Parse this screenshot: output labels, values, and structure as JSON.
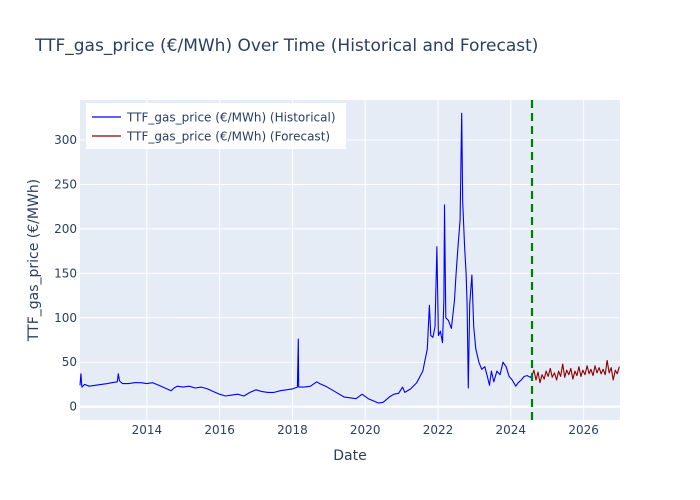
{
  "chart_data": {
    "type": "line",
    "title": "TTF_gas_price (€/MWh) Over Time (Historical and Forecast)",
    "xlabel": "Date",
    "ylabel": "TTF_gas_price (€/MWh)",
    "xlim": [
      "2012-03-01",
      "2027-01-01"
    ],
    "ylim": [
      -15,
      345
    ],
    "x_ticks": [
      "2014",
      "2016",
      "2018",
      "2020",
      "2022",
      "2024",
      "2026"
    ],
    "y_ticks": [
      0,
      50,
      100,
      150,
      200,
      250,
      300
    ],
    "grid": true,
    "legend_position": "top-left",
    "forecast_start_marker": "2024-08-01",
    "series": [
      {
        "name": "TTF_gas_price (€/MWh) (Historical)",
        "color": "#0000ff",
        "points": [
          [
            "2012-03-01",
            24
          ],
          [
            "2012-03-10",
            37
          ],
          [
            "2012-03-20",
            22
          ],
          [
            "2012-04-15",
            25
          ],
          [
            "2012-06-01",
            23
          ],
          [
            "2012-08-01",
            24
          ],
          [
            "2012-10-01",
            25
          ],
          [
            "2012-12-01",
            26
          ],
          [
            "2013-01-15",
            27
          ],
          [
            "2013-03-10",
            28
          ],
          [
            "2013-03-20",
            37
          ],
          [
            "2013-04-01",
            29
          ],
          [
            "2013-05-01",
            26
          ],
          [
            "2013-07-01",
            26
          ],
          [
            "2013-09-01",
            27
          ],
          [
            "2013-11-01",
            27
          ],
          [
            "2014-01-01",
            26
          ],
          [
            "2014-03-01",
            27
          ],
          [
            "2014-05-01",
            24
          ],
          [
            "2014-07-01",
            21
          ],
          [
            "2014-09-01",
            18
          ],
          [
            "2014-10-01",
            21
          ],
          [
            "2014-11-01",
            23
          ],
          [
            "2015-01-01",
            22
          ],
          [
            "2015-03-01",
            23
          ],
          [
            "2015-05-01",
            21
          ],
          [
            "2015-07-01",
            22
          ],
          [
            "2015-09-01",
            20
          ],
          [
            "2015-11-01",
            17
          ],
          [
            "2016-01-01",
            14
          ],
          [
            "2016-03-01",
            12
          ],
          [
            "2016-05-01",
            13
          ],
          [
            "2016-07-01",
            14
          ],
          [
            "2016-09-01",
            12
          ],
          [
            "2016-11-01",
            16
          ],
          [
            "2017-01-01",
            19
          ],
          [
            "2017-03-01",
            17
          ],
          [
            "2017-05-01",
            16
          ],
          [
            "2017-07-01",
            16
          ],
          [
            "2017-09-01",
            18
          ],
          [
            "2017-11-01",
            19
          ],
          [
            "2018-01-01",
            20
          ],
          [
            "2018-02-20",
            22
          ],
          [
            "2018-03-01",
            76
          ],
          [
            "2018-03-05",
            22
          ],
          [
            "2018-05-01",
            22
          ],
          [
            "2018-07-01",
            23
          ],
          [
            "2018-09-01",
            28
          ],
          [
            "2018-10-01",
            26
          ],
          [
            "2018-12-01",
            23
          ],
          [
            "2019-02-01",
            19
          ],
          [
            "2019-04-01",
            15
          ],
          [
            "2019-06-01",
            11
          ],
          [
            "2019-08-01",
            10
          ],
          [
            "2019-10-01",
            9
          ],
          [
            "2019-12-01",
            14
          ],
          [
            "2020-02-01",
            9
          ],
          [
            "2020-04-01",
            6
          ],
          [
            "2020-05-15",
            4
          ],
          [
            "2020-07-01",
            5
          ],
          [
            "2020-09-01",
            11
          ],
          [
            "2020-10-15",
            14
          ],
          [
            "2020-12-01",
            15
          ],
          [
            "2021-01-10",
            22
          ],
          [
            "2021-02-01",
            16
          ],
          [
            "2021-04-01",
            20
          ],
          [
            "2021-06-01",
            27
          ],
          [
            "2021-08-01",
            40
          ],
          [
            "2021-09-15",
            65
          ],
          [
            "2021-10-06",
            114
          ],
          [
            "2021-10-20",
            80
          ],
          [
            "2021-11-10",
            78
          ],
          [
            "2021-12-01",
            90
          ],
          [
            "2021-12-21",
            180
          ],
          [
            "2022-01-05",
            80
          ],
          [
            "2022-01-25",
            85
          ],
          [
            "2022-02-15",
            72
          ],
          [
            "2022-03-01",
            120
          ],
          [
            "2022-03-07",
            227
          ],
          [
            "2022-03-20",
            100
          ],
          [
            "2022-04-15",
            97
          ],
          [
            "2022-05-15",
            88
          ],
          [
            "2022-06-15",
            120
          ],
          [
            "2022-07-01",
            150
          ],
          [
            "2022-07-20",
            180
          ],
          [
            "2022-08-10",
            210
          ],
          [
            "2022-08-26",
            330
          ],
          [
            "2022-09-05",
            230
          ],
          [
            "2022-09-25",
            180
          ],
          [
            "2022-10-10",
            150
          ],
          [
            "2022-10-20",
            115
          ],
          [
            "2022-11-01",
            21
          ],
          [
            "2022-11-15",
            115
          ],
          [
            "2022-12-07",
            148
          ],
          [
            "2022-12-25",
            90
          ],
          [
            "2023-01-15",
            65
          ],
          [
            "2023-02-15",
            50
          ],
          [
            "2023-03-15",
            42
          ],
          [
            "2023-04-15",
            45
          ],
          [
            "2023-05-15",
            32
          ],
          [
            "2023-06-01",
            24
          ],
          [
            "2023-06-20",
            40
          ],
          [
            "2023-07-15",
            28
          ],
          [
            "2023-08-15",
            40
          ],
          [
            "2023-09-15",
            36
          ],
          [
            "2023-10-15",
            50
          ],
          [
            "2023-11-15",
            45
          ],
          [
            "2023-12-15",
            34
          ],
          [
            "2024-01-15",
            30
          ],
          [
            "2024-02-20",
            23
          ],
          [
            "2024-03-15",
            27
          ],
          [
            "2024-04-15",
            30
          ],
          [
            "2024-05-15",
            34
          ],
          [
            "2024-06-15",
            35
          ],
          [
            "2024-07-15",
            33
          ],
          [
            "2024-08-01",
            35
          ]
        ]
      },
      {
        "name": "TTF_gas_price (€/MWh) (Forecast)",
        "color": "#8b0000",
        "points": [
          [
            "2024-08-01",
            35
          ],
          [
            "2024-08-20",
            41
          ],
          [
            "2024-09-10",
            30
          ],
          [
            "2024-09-30",
            39
          ],
          [
            "2024-10-20",
            27
          ],
          [
            "2024-11-10",
            36
          ],
          [
            "2024-12-01",
            31
          ],
          [
            "2024-12-20",
            40
          ],
          [
            "2025-01-10",
            34
          ],
          [
            "2025-02-01",
            43
          ],
          [
            "2025-02-20",
            33
          ],
          [
            "2025-03-15",
            38
          ],
          [
            "2025-04-05",
            30
          ],
          [
            "2025-04-25",
            40
          ],
          [
            "2025-05-15",
            34
          ],
          [
            "2025-06-05",
            48
          ],
          [
            "2025-06-25",
            33
          ],
          [
            "2025-07-15",
            41
          ],
          [
            "2025-08-05",
            36
          ],
          [
            "2025-08-25",
            43
          ],
          [
            "2025-09-15",
            31
          ],
          [
            "2025-10-05",
            40
          ],
          [
            "2025-10-25",
            35
          ],
          [
            "2025-11-15",
            45
          ],
          [
            "2025-12-05",
            34
          ],
          [
            "2025-12-25",
            41
          ],
          [
            "2026-01-15",
            36
          ],
          [
            "2026-02-05",
            46
          ],
          [
            "2026-02-25",
            37
          ],
          [
            "2026-03-15",
            42
          ],
          [
            "2026-04-05",
            35
          ],
          [
            "2026-04-25",
            46
          ],
          [
            "2026-05-15",
            38
          ],
          [
            "2026-06-05",
            44
          ],
          [
            "2026-06-25",
            37
          ],
          [
            "2026-07-15",
            42
          ],
          [
            "2026-08-05",
            36
          ],
          [
            "2026-08-25",
            52
          ],
          [
            "2026-09-15",
            38
          ],
          [
            "2026-10-05",
            44
          ],
          [
            "2026-10-25",
            30
          ],
          [
            "2026-11-15",
            41
          ],
          [
            "2026-12-05",
            37
          ],
          [
            "2026-12-25",
            45
          ]
        ]
      }
    ]
  },
  "colors": {
    "plot_background": "#e5ecf6",
    "grid": "#ffffff",
    "text": "#2a3f5f",
    "forecast_marker": "#008000"
  }
}
